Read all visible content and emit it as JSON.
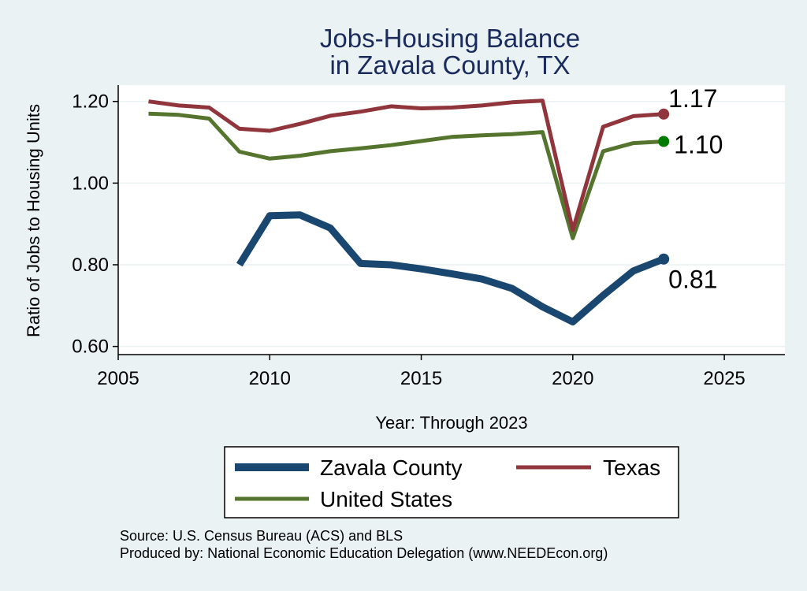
{
  "chart_data": {
    "type": "line",
    "title": [
      "Jobs-Housing Balance",
      "in Zavala County, TX"
    ],
    "xlabel": "Year: Through 2023",
    "ylabel": "Ratio of Jobs to Housing Units",
    "xlim": [
      2005,
      2027
    ],
    "ylim": [
      0.58,
      1.24
    ],
    "x_ticks": [
      2005,
      2010,
      2015,
      2020,
      2025
    ],
    "y_ticks": [
      0.6,
      0.8,
      1.0,
      1.2
    ],
    "y_tick_labels": [
      "0.60",
      "0.80",
      "1.00",
      "1.20"
    ],
    "grid": true,
    "legend_position": "bottom",
    "series": [
      {
        "name": "Zavala County",
        "color": "#1a476f",
        "end_label": "0.81",
        "x": [
          2009,
          2010,
          2011,
          2012,
          2013,
          2014,
          2015,
          2016,
          2017,
          2018,
          2019,
          2020,
          2021,
          2022,
          2023
        ],
        "y": [
          0.8,
          0.92,
          0.922,
          0.89,
          0.803,
          0.8,
          0.79,
          0.778,
          0.765,
          0.742,
          0.697,
          0.66,
          0.725,
          0.785,
          0.814
        ]
      },
      {
        "name": "Texas",
        "color": "#90353b",
        "end_label": "1.17",
        "x": [
          2006,
          2007,
          2008,
          2009,
          2010,
          2011,
          2012,
          2013,
          2014,
          2015,
          2016,
          2017,
          2018,
          2019,
          2020,
          2021,
          2022,
          2023
        ],
        "y": [
          1.2,
          1.19,
          1.185,
          1.133,
          1.128,
          1.145,
          1.165,
          1.175,
          1.188,
          1.183,
          1.185,
          1.19,
          1.198,
          1.202,
          0.885,
          1.138,
          1.164,
          1.169
        ]
      },
      {
        "name": "United States",
        "color": "#55752f",
        "end_label": "1.10",
        "x": [
          2006,
          2007,
          2008,
          2009,
          2010,
          2011,
          2012,
          2013,
          2014,
          2015,
          2016,
          2017,
          2018,
          2019,
          2020,
          2021,
          2022,
          2023
        ],
        "y": [
          1.17,
          1.167,
          1.158,
          1.077,
          1.06,
          1.067,
          1.078,
          1.085,
          1.093,
          1.103,
          1.113,
          1.117,
          1.12,
          1.125,
          0.865,
          1.078,
          1.098,
          1.102
        ]
      }
    ],
    "end_marker_colors": [
      "#1a476f",
      "#90353b",
      "#007a00"
    ],
    "notes": [
      "Source: U.S. Census Bureau (ACS) and BLS",
      "Produced by: National Economic Education Delegation (www.NEEDEcon.org)"
    ]
  }
}
